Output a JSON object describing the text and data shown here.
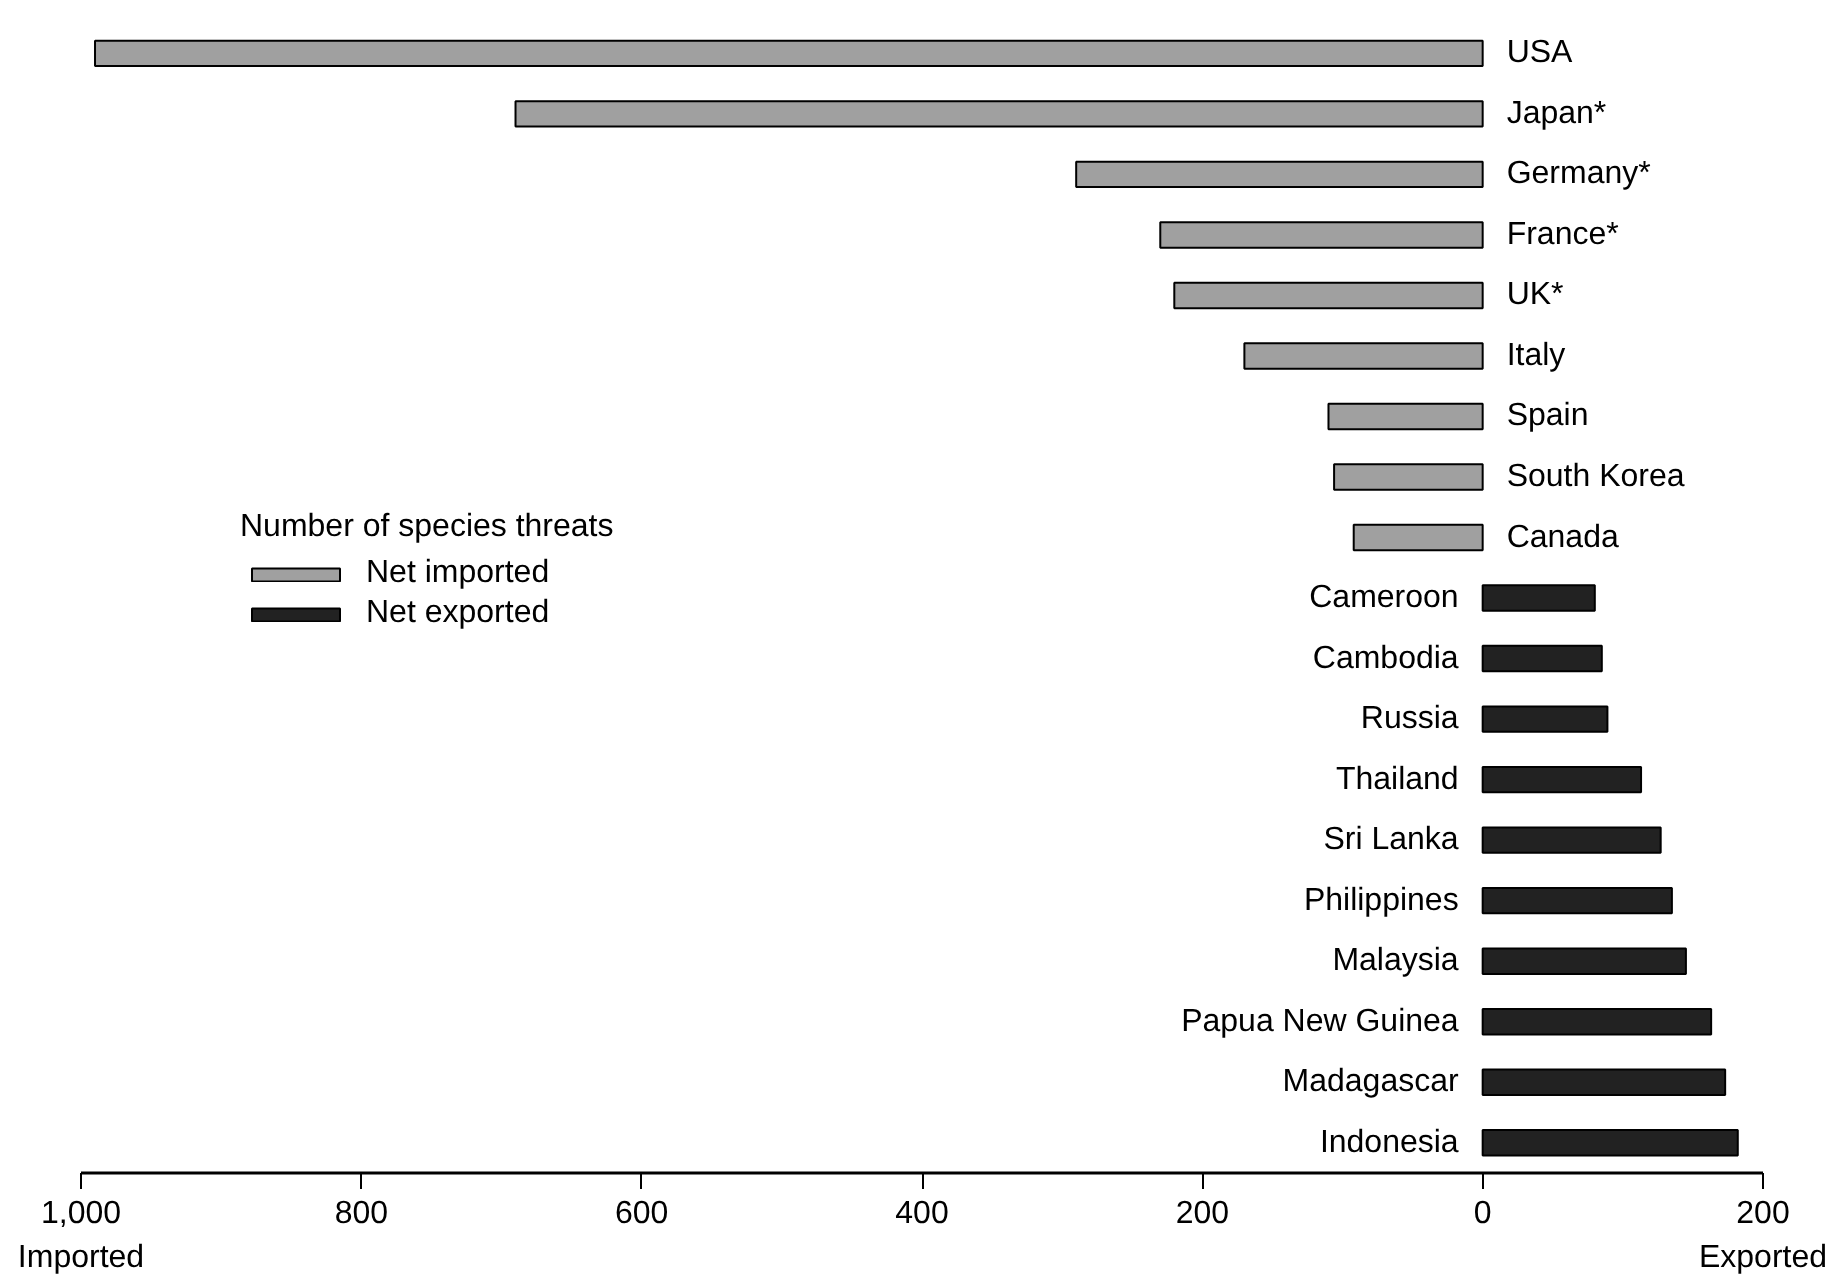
{
  "chart_data": {
    "type": "bar",
    "orientation": "horizontal",
    "legend_title": "Number of species threats",
    "legend": "left",
    "categories": [
      "USA",
      "Japan*",
      "Germany*",
      "France*",
      "UK*",
      "Italy",
      "Spain",
      "South Korea",
      "Canada",
      "Cameroon",
      "Cambodia",
      "Russia",
      "Thailand",
      "Sri Lanka",
      "Philippines",
      "Malaysia",
      "Papua New Guinea",
      "Madagascar",
      "Indonesia"
    ],
    "series": [
      {
        "name": "Net imported",
        "color": "#a0a0a0",
        "values": [
          -990,
          -690,
          -290,
          -230,
          -220,
          -170,
          -110,
          -106,
          -92,
          null,
          null,
          null,
          null,
          null,
          null,
          null,
          null,
          null,
          null
        ]
      },
      {
        "name": "Net exported",
        "color": "#222222",
        "values": [
          null,
          null,
          null,
          null,
          null,
          null,
          null,
          null,
          null,
          80,
          85,
          89,
          113,
          127,
          135,
          145,
          163,
          173,
          182
        ]
      }
    ],
    "xlim": [
      -1000,
      200
    ],
    "xticks": [
      {
        "value": -1000,
        "label": "1,000"
      },
      {
        "value": -800,
        "label": "800"
      },
      {
        "value": -600,
        "label": "600"
      },
      {
        "value": -400,
        "label": "400"
      },
      {
        "value": -200,
        "label": "200"
      },
      0,
      200
    ],
    "annotations": [
      "Imported",
      "Exported"
    ],
    "grid": false
  }
}
